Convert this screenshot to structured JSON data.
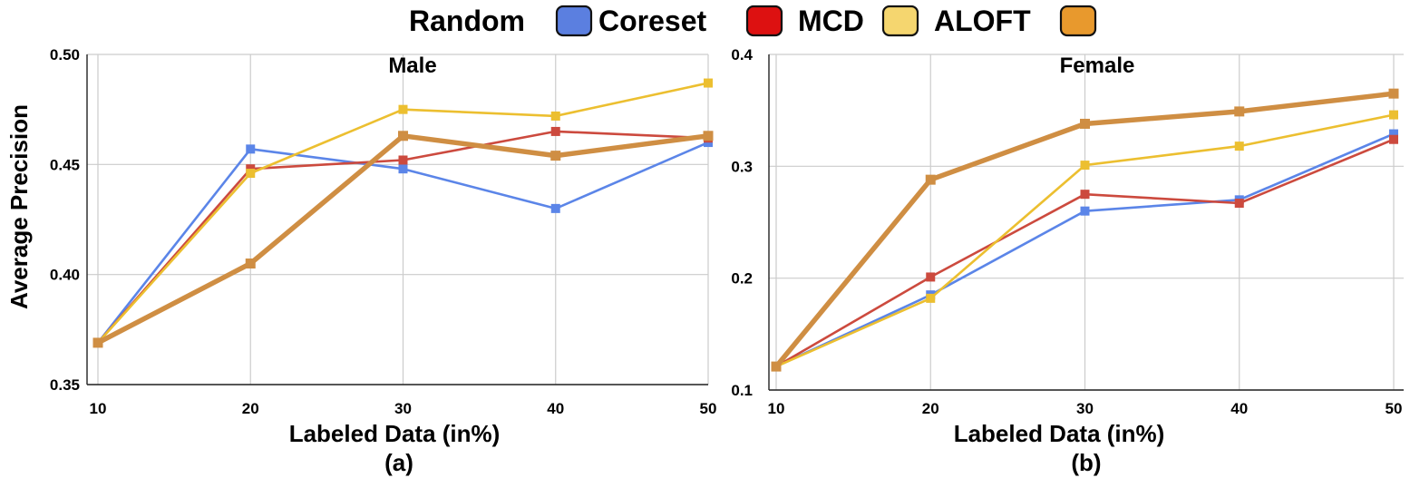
{
  "legend": [
    {
      "name": "Random",
      "color": "#5b7fe0"
    },
    {
      "name": "Coreset",
      "color": "#dd1111"
    },
    {
      "name": "MCD",
      "color": "#f5d66f"
    },
    {
      "name": "ALOFT",
      "color": "#e8992d"
    }
  ],
  "ylabel": "Average Precision",
  "chart_data": [
    {
      "type": "line",
      "title": "Male",
      "caption": "(a)",
      "xlabel": "Labeled Data (in%)",
      "x": [
        10,
        20,
        30,
        40,
        50
      ],
      "xlim": [
        10,
        50
      ],
      "ylim": [
        0.35,
        0.5
      ],
      "yticks": [
        "0.35",
        "0.40",
        "0.45",
        "0.50"
      ],
      "grid": true,
      "series": [
        {
          "name": "Random",
          "color": "#5b85e8",
          "values": [
            0.369,
            0.457,
            0.448,
            0.43,
            0.46
          ]
        },
        {
          "name": "Coreset",
          "color": "#cc4a3e",
          "values": [
            0.369,
            0.448,
            0.452,
            0.465,
            0.462
          ]
        },
        {
          "name": "MCD",
          "color": "#ecbf30",
          "values": [
            0.369,
            0.446,
            0.475,
            0.472,
            0.487
          ]
        },
        {
          "name": "ALOFT",
          "color": "#cf8e43",
          "values": [
            0.369,
            0.405,
            0.463,
            0.454,
            0.463
          ]
        }
      ]
    },
    {
      "type": "line",
      "title": "Female",
      "caption": "(b)",
      "xlabel": "Labeled Data (in%)",
      "x": [
        10,
        20,
        30,
        40,
        50
      ],
      "xlim": [
        10,
        50
      ],
      "ylim": [
        0.1,
        0.4
      ],
      "yticks": [
        "0.1",
        "0.2",
        "0.3",
        "0.4"
      ],
      "grid": true,
      "series": [
        {
          "name": "Random",
          "color": "#5b85e8",
          "values": [
            0.121,
            0.185,
            0.26,
            0.27,
            0.329
          ]
        },
        {
          "name": "Coreset",
          "color": "#cc4a3e",
          "values": [
            0.121,
            0.201,
            0.275,
            0.267,
            0.324
          ]
        },
        {
          "name": "MCD",
          "color": "#ecbf30",
          "values": [
            0.121,
            0.182,
            0.301,
            0.318,
            0.346
          ]
        },
        {
          "name": "ALOFT",
          "color": "#cf8e43",
          "values": [
            0.121,
            0.288,
            0.338,
            0.349,
            0.365
          ]
        }
      ]
    }
  ]
}
